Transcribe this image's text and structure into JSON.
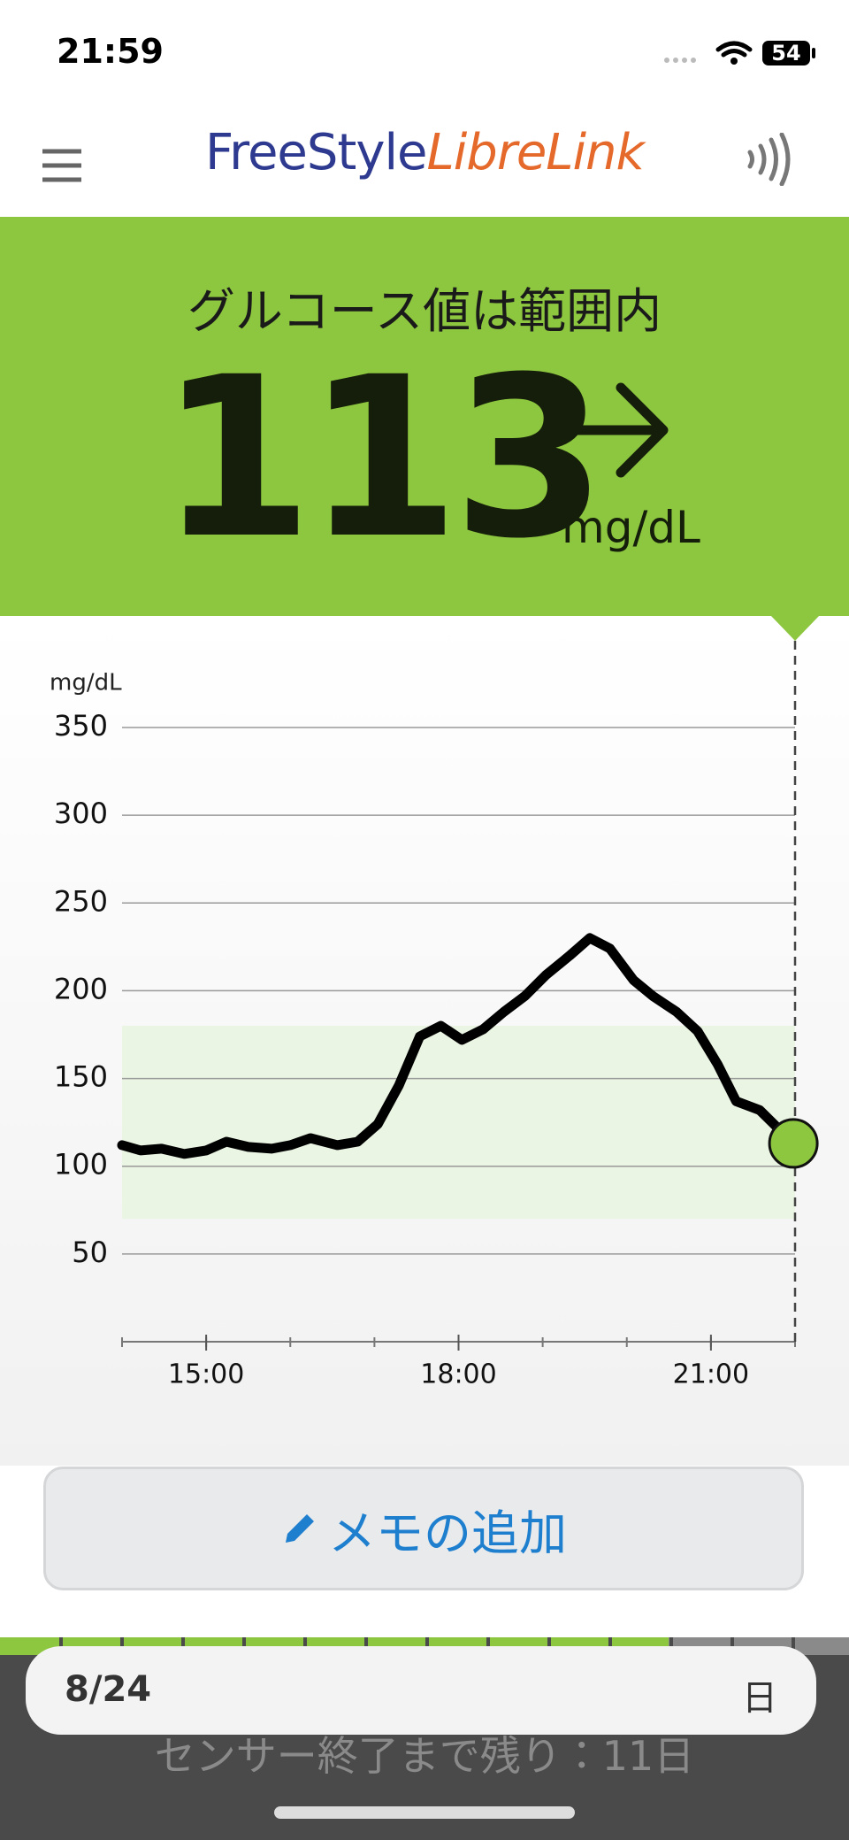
{
  "status_bar": {
    "time": "21:59",
    "battery": "54"
  },
  "header": {
    "brand_1": "FreeStyle",
    "brand_2": "LibreLink"
  },
  "banner": {
    "status": "グルコース値は範囲内",
    "reading": "113",
    "unit": "mg/dL"
  },
  "chart_data": {
    "type": "line",
    "y_unit": "mg/dL",
    "x": [
      14.0,
      14.22,
      14.47,
      14.74,
      15.0,
      15.24,
      15.5,
      15.78,
      16.0,
      16.24,
      16.56,
      16.8,
      17.04,
      17.29,
      17.54,
      17.79,
      18.04,
      18.29,
      18.54,
      18.79,
      19.04,
      19.32,
      19.56,
      19.8,
      20.08,
      20.31,
      20.59,
      20.84,
      21.08,
      21.3,
      21.58,
      21.98
    ],
    "values": [
      112,
      109,
      110,
      107,
      109,
      114,
      111,
      110,
      112,
      116,
      112,
      114,
      124,
      146,
      174,
      180,
      172,
      178,
      188,
      197,
      209,
      220,
      230,
      224,
      206,
      197,
      188,
      177,
      158,
      137,
      132,
      113
    ],
    "color": "#000000",
    "marker_color": "#8dc63f",
    "target_range": [
      70,
      180
    ],
    "target_color": "#ebf5e3",
    "xlim": [
      14,
      22
    ],
    "xticks": [
      {
        "value": 15,
        "label": "15:00"
      },
      {
        "value": 18,
        "label": "18:00"
      },
      {
        "value": 21,
        "label": "21:00"
      }
    ],
    "xminor_ticks": [
      14,
      15,
      16,
      17,
      18,
      19,
      20,
      21,
      22
    ],
    "ylim": [
      0,
      350
    ],
    "yticks": [
      50,
      100,
      150,
      200,
      250,
      300,
      350
    ],
    "grid": true
  },
  "memo_button": {
    "label": "メモの追加"
  },
  "footer": {
    "sensor_text": "センサー終了まで残り：11日",
    "date": "8/24",
    "period": "日"
  }
}
